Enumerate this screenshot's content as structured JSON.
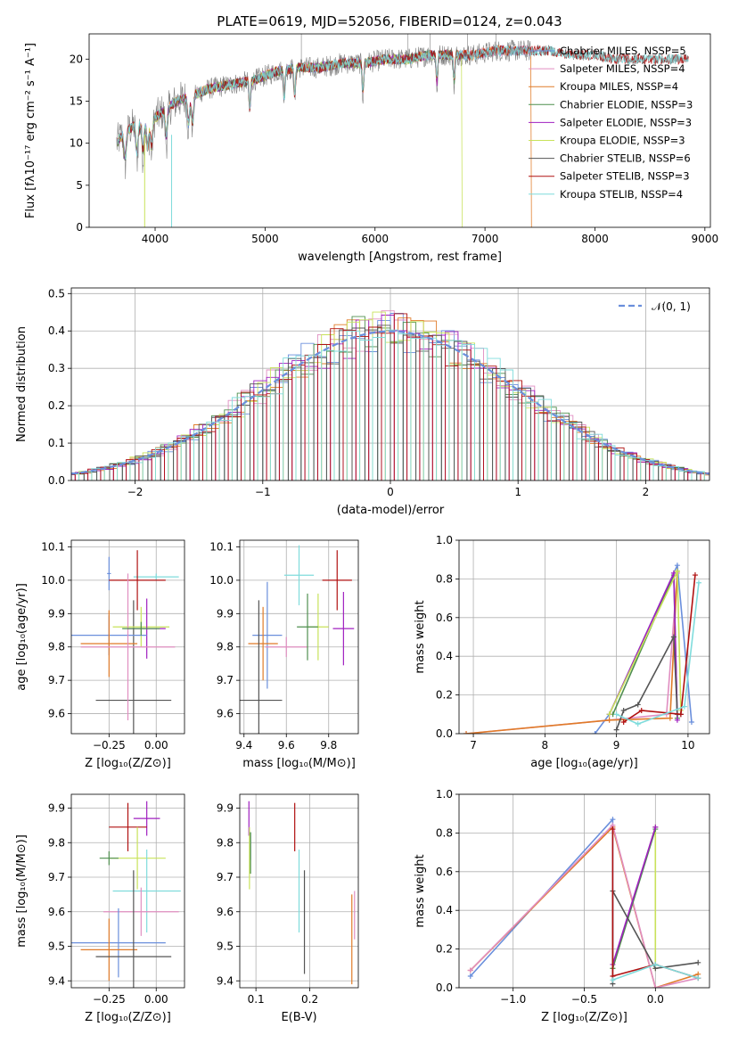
{
  "colors": {
    "chabrier_miles": "#6a8fdc",
    "salpeter_miles": "#e08ec1",
    "kroupa_miles": "#e07b28",
    "chabrier_elodie": "#4f8f4f",
    "salpeter_elodie": "#a020c0",
    "kroupa_elodie": "#c8e25a",
    "chabrier_stelib": "#555555",
    "salpeter_stelib": "#b01010",
    "kroupa_stelib": "#7fdcdc",
    "spectrum": "#808080",
    "normal_curve": "#6a8fdc"
  },
  "chart_data": [
    {
      "id": "spectrum",
      "type": "line",
      "title": "PLATE=0619, MJD=52056, FIBERID=0124, z=0.043",
      "xlabel": "wavelength [Angstrom, rest frame]",
      "ylabel": "Flux [fλ10⁻¹⁷ erg cm⁻² s⁻¹ A⁻¹]",
      "xlim": [
        3400,
        9050
      ],
      "ylim": [
        0,
        23
      ],
      "xticks": [
        "4000",
        "5000",
        "6000",
        "7000",
        "8000",
        "9000"
      ],
      "yticks": [
        "0",
        "5",
        "10",
        "15",
        "20"
      ],
      "grid": false,
      "legend": [
        {
          "label": "Chabrier MILES, NSSP=5",
          "color_key": "chabrier_miles"
        },
        {
          "label": "Salpeter MILES, NSSP=4",
          "color_key": "salpeter_miles"
        },
        {
          "label": "Kroupa MILES, NSSP=4",
          "color_key": "kroupa_miles"
        },
        {
          "label": "Chabrier ELODIE, NSSP=3",
          "color_key": "chabrier_elodie"
        },
        {
          "label": "Salpeter ELODIE, NSSP=3",
          "color_key": "salpeter_elodie"
        },
        {
          "label": "Kroupa ELODIE, NSSP=3",
          "color_key": "kroupa_elodie"
        },
        {
          "label": "Chabrier STELIB, NSSP=6",
          "color_key": "chabrier_stelib"
        },
        {
          "label": "Salpeter STELIB, NSSP=3",
          "color_key": "salpeter_stelib"
        },
        {
          "label": "Kroupa STELIB, NSSP=4",
          "color_key": "kroupa_stelib"
        }
      ],
      "continuum": {
        "x": [
          3650,
          3700,
          3800,
          3900,
          4000,
          4100,
          4200,
          4300,
          4500,
          4700,
          4900,
          5100,
          5300,
          5500,
          5700,
          5900,
          6100,
          6300,
          6500,
          6700,
          6900,
          7100,
          7300,
          7400
        ],
        "y": [
          10,
          11,
          12,
          12.5,
          13,
          14,
          15,
          15.5,
          16.5,
          17,
          17.5,
          18.5,
          19,
          19,
          19.5,
          19.5,
          20,
          20,
          20.5,
          20.5,
          20.5,
          21,
          21,
          21
        ]
      },
      "model_continuum": {
        "x": [
          7400,
          7600,
          7800,
          8000,
          8200,
          8400,
          8600,
          8800
        ],
        "y": [
          21,
          21,
          20.5,
          20.5,
          20,
          20,
          20,
          20
        ]
      }
    },
    {
      "id": "residuals",
      "type": "histogram",
      "xlabel": "(data-model)/error",
      "ylabel": "Normed distribution",
      "xlim": [
        -2.5,
        2.5
      ],
      "ylim": [
        0,
        0.515
      ],
      "xticks": [
        "−2",
        "−1",
        "0",
        "1",
        "2"
      ],
      "yticks": [
        "0.0",
        "0.1",
        "0.2",
        "0.3",
        "0.4",
        "0.5"
      ],
      "grid": true,
      "legend_position": "top-right",
      "curve_label": "𝒩(0, 1)",
      "bin_width": 0.1
    },
    {
      "id": "age-vs-Z",
      "type": "scatter",
      "xlabel": "Z [log₁₀(Z/Z⊙)]",
      "ylabel": "age  [log₁₀(age/yr)]",
      "xlim": [
        -0.45,
        0.15
      ],
      "ylim": [
        9.54,
        10.12
      ],
      "xticks": [
        "−0.25",
        "0.00"
      ],
      "yticks": [
        "9.6",
        "9.7",
        "9.8",
        "9.9",
        "10.0",
        "10.1"
      ],
      "grid": true,
      "points": [
        {
          "k": "chabrier_miles",
          "x": -0.25,
          "y": 10.02,
          "ex": 0.01,
          "ey": 0.05
        },
        {
          "k": "kroupa_stelib",
          "x": 0.0,
          "y": 10.01,
          "ex": 0.12,
          "ey": 0.01
        },
        {
          "k": "salpeter_stelib",
          "x": -0.1,
          "y": 10.0,
          "ex": 0.15,
          "ey": 0.09
        },
        {
          "k": "chabrier_stelib",
          "x": -0.12,
          "y": 9.64,
          "ex": 0.2,
          "ey": 0.3
        },
        {
          "k": "kroupa_elodie",
          "x": -0.08,
          "y": 9.86,
          "ex": 0.15,
          "ey": 0.06
        },
        {
          "k": "salpeter_elodie",
          "x": -0.05,
          "y": 9.855,
          "ex": 0.1,
          "ey": 0.09
        },
        {
          "k": "chabrier_miles",
          "x": -0.25,
          "y": 9.835,
          "ex": 0.2,
          "ey": 0.06
        },
        {
          "k": "kroupa_miles",
          "x": -0.25,
          "y": 9.81,
          "ex": 0.15,
          "ey": 0.1
        },
        {
          "k": "salpeter_miles",
          "x": -0.15,
          "y": 9.8,
          "ex": 0.25,
          "ey": 0.22
        },
        {
          "k": "chabrier_elodie",
          "x": -0.08,
          "y": 9.855,
          "ex": 0.1,
          "ey": 0.02
        }
      ]
    },
    {
      "id": "age-vs-mass",
      "type": "scatter",
      "xlabel": "mass [log₁₀(M/M⊙)]",
      "ylabel": "",
      "xlim": [
        9.38,
        9.94
      ],
      "ylim": [
        9.54,
        10.12
      ],
      "xticks": [
        "9.4",
        "9.6",
        "9.8"
      ],
      "yticks": [
        "9.6",
        "9.7",
        "9.8",
        "9.9",
        "10.0",
        "10.1"
      ],
      "grid": true,
      "points": [
        {
          "k": "kroupa_stelib",
          "x": 9.66,
          "y": 10.015,
          "ex": 0.07,
          "ey": 0.09
        },
        {
          "k": "salpeter_stelib",
          "x": 9.84,
          "y": 10.0,
          "ex": 0.07,
          "ey": 0.09
        },
        {
          "k": "chabrier_miles",
          "x": 9.51,
          "y": 9.835,
          "ex": 0.07,
          "ey": 0.16
        },
        {
          "k": "kroupa_miles",
          "x": 9.49,
          "y": 9.81,
          "ex": 0.07,
          "ey": 0.11
        },
        {
          "k": "chabrier_stelib",
          "x": 9.47,
          "y": 9.64,
          "ex": 0.11,
          "ey": 0.3
        },
        {
          "k": "kroupa_elodie",
          "x": 9.75,
          "y": 9.86,
          "ex": 0.05,
          "ey": 0.1
        },
        {
          "k": "salpeter_elodie",
          "x": 9.87,
          "y": 9.855,
          "ex": 0.05,
          "ey": 0.11
        },
        {
          "k": "salpeter_miles",
          "x": 9.6,
          "y": 9.8,
          "ex": 0.1,
          "ey": 0.03
        },
        {
          "k": "chabrier_elodie",
          "x": 9.7,
          "y": 9.86,
          "ex": 0.05,
          "ey": 0.1
        }
      ]
    },
    {
      "id": "weight-vs-age",
      "type": "line",
      "xlabel": "age  [log₁₀(age/yr)]",
      "ylabel": "mass weight",
      "xlim": [
        6.8,
        10.3
      ],
      "ylim": [
        0,
        1.0
      ],
      "xticks": [
        "7",
        "8",
        "9",
        "10"
      ],
      "yticks": [
        "0.0",
        "0.2",
        "0.4",
        "0.6",
        "0.8",
        "1.0"
      ],
      "grid": true,
      "series": [
        {
          "k": "chabrier_miles",
          "x": [
            8.7,
            8.9,
            9.85,
            10.05
          ],
          "y": [
            0.0,
            0.1,
            0.87,
            0.06
          ]
        },
        {
          "k": "salpeter_miles",
          "x": [
            6.9,
            8.9,
            9.7,
            9.85
          ],
          "y": [
            0.0,
            0.07,
            0.1,
            0.83
          ]
        },
        {
          "k": "kroupa_miles",
          "x": [
            6.9,
            8.9,
            9.75,
            9.85
          ],
          "y": [
            0.0,
            0.07,
            0.08,
            0.84
          ]
        },
        {
          "k": "chabrier_elodie",
          "x": [
            8.95,
            9.8,
            9.85
          ],
          "y": [
            0.1,
            0.82,
            0.08
          ]
        },
        {
          "k": "salpeter_elodie",
          "x": [
            8.9,
            9.8,
            9.85
          ],
          "y": [
            0.1,
            0.83,
            0.07
          ]
        },
        {
          "k": "kroupa_elodie",
          "x": [
            8.9,
            9.85,
            9.9
          ],
          "y": [
            0.1,
            0.84,
            0.12
          ]
        },
        {
          "k": "chabrier_stelib",
          "x": [
            9.0,
            9.1,
            9.3,
            9.8,
            9.85,
            9.9
          ],
          "y": [
            0.02,
            0.12,
            0.15,
            0.5,
            0.1,
            0.1
          ]
        },
        {
          "k": "salpeter_stelib",
          "x": [
            9.1,
            9.35,
            9.9,
            10.1
          ],
          "y": [
            0.06,
            0.12,
            0.1,
            0.82
          ]
        },
        {
          "k": "kroupa_stelib",
          "x": [
            9.0,
            9.3,
            9.95,
            10.15
          ],
          "y": [
            0.1,
            0.05,
            0.14,
            0.78
          ]
        }
      ]
    },
    {
      "id": "mass-vs-Z",
      "type": "scatter",
      "xlabel": "Z [log₁₀(Z/Z⊙)]",
      "ylabel": "mass [log₁₀(M/M⊙)]",
      "xlim": [
        -0.45,
        0.15
      ],
      "ylim": [
        9.38,
        9.94
      ],
      "xticks": [
        "−0.25",
        "0.00"
      ],
      "yticks": [
        "9.4",
        "9.5",
        "9.6",
        "9.7",
        "9.8",
        "9.9"
      ],
      "grid": true,
      "points": [
        {
          "k": "salpeter_elodie",
          "x": -0.05,
          "y": 9.87,
          "ex": 0.07,
          "ey": 0.05
        },
        {
          "k": "salpeter_stelib",
          "x": -0.15,
          "y": 9.845,
          "ex": 0.1,
          "ey": 0.07
        },
        {
          "k": "kroupa_elodie",
          "x": -0.1,
          "y": 9.755,
          "ex": 0.15,
          "ey": 0.09
        },
        {
          "k": "kroupa_stelib",
          "x": -0.05,
          "y": 9.66,
          "ex": 0.18,
          "ey": 0.12
        },
        {
          "k": "salpeter_miles",
          "x": -0.08,
          "y": 9.6,
          "ex": 0.2,
          "ey": 0.07
        },
        {
          "k": "chabrier_miles",
          "x": -0.2,
          "y": 9.51,
          "ex": 0.25,
          "ey": 0.1
        },
        {
          "k": "kroupa_miles",
          "x": -0.25,
          "y": 9.49,
          "ex": 0.15,
          "ey": 0.09
        },
        {
          "k": "chabrier_stelib",
          "x": -0.12,
          "y": 9.47,
          "ex": 0.2,
          "ey": 0.25
        },
        {
          "k": "chabrier_elodie",
          "x": -0.25,
          "y": 9.755,
          "ex": 0.05,
          "ey": 0.02
        }
      ]
    },
    {
      "id": "mass-vs-ebv",
      "type": "scatter",
      "xlabel": "E(B-V)",
      "ylabel": "",
      "xlim": [
        0.07,
        0.29
      ],
      "ylim": [
        9.38,
        9.94
      ],
      "xticks": [
        "0.1",
        "0.2"
      ],
      "yticks": [
        "9.4",
        "9.5",
        "9.6",
        "9.7",
        "9.8",
        "9.9"
      ],
      "grid": true,
      "points": [
        {
          "k": "salpeter_elodie",
          "x": 0.087,
          "y": 9.87,
          "ex": 0,
          "ey": 0.05
        },
        {
          "k": "chabrier_miles",
          "x": 0.09,
          "y": 9.79,
          "ex": 0,
          "ey": 0.04
        },
        {
          "k": "kroupa_elodie",
          "x": 0.088,
          "y": 9.755,
          "ex": 0,
          "ey": 0.09
        },
        {
          "k": "chabrier_elodie",
          "x": 0.09,
          "y": 9.77,
          "ex": 0,
          "ey": 0.06
        },
        {
          "k": "salpeter_stelib",
          "x": 0.172,
          "y": 9.845,
          "ex": 0,
          "ey": 0.07
        },
        {
          "k": "kroupa_stelib",
          "x": 0.18,
          "y": 9.66,
          "ex": 0,
          "ey": 0.12
        },
        {
          "k": "chabrier_stelib",
          "x": 0.19,
          "y": 9.57,
          "ex": 0,
          "ey": 0.15
        },
        {
          "k": "salpeter_miles",
          "x": 0.283,
          "y": 9.59,
          "ex": 0,
          "ey": 0.07
        },
        {
          "k": "kroupa_miles",
          "x": 0.278,
          "y": 9.52,
          "ex": 0,
          "ey": 0.13
        }
      ]
    },
    {
      "id": "weight-vs-Z",
      "type": "line",
      "xlabel": "Z [log₁₀(Z/Z⊙)]",
      "ylabel": "mass weight",
      "xlim": [
        -1.38,
        0.38
      ],
      "ylim": [
        0,
        1.0
      ],
      "xticks": [
        "−1.0",
        "−0.5",
        "0.0"
      ],
      "yticks": [
        "0.0",
        "0.2",
        "0.4",
        "0.6",
        "0.8",
        "1.0"
      ],
      "grid": true,
      "series": [
        {
          "k": "chabrier_miles",
          "x": [
            -1.3,
            -0.3,
            -0.3
          ],
          "y": [
            0.06,
            0.87,
            0.1
          ]
        },
        {
          "k": "kroupa_miles",
          "x": [
            -1.3,
            -0.3,
            0.0,
            0.3
          ],
          "y": [
            0.09,
            0.83,
            0.0,
            0.07
          ]
        },
        {
          "k": "salpeter_miles",
          "x": [
            -1.3,
            -0.3,
            0.0,
            0.3
          ],
          "y": [
            0.09,
            0.84,
            0.0,
            0.05
          ]
        },
        {
          "k": "kroupa_elodie",
          "x": [
            -0.3,
            0.0,
            0.0
          ],
          "y": [
            0.1,
            0.83,
            0.1
          ]
        },
        {
          "k": "chabrier_elodie",
          "x": [
            -0.3,
            0.0
          ],
          "y": [
            0.1,
            0.82
          ]
        },
        {
          "k": "salpeter_elodie",
          "x": [
            -0.3,
            0.0
          ],
          "y": [
            0.12,
            0.83
          ]
        },
        {
          "k": "chabrier_stelib",
          "x": [
            -0.3,
            -0.3,
            0.0,
            0.3
          ],
          "y": [
            0.02,
            0.5,
            0.1,
            0.13
          ]
        },
        {
          "k": "salpeter_stelib",
          "x": [
            -0.3,
            -0.3,
            0.0,
            0.3
          ],
          "y": [
            0.82,
            0.06,
            0.12,
            0.05
          ]
        },
        {
          "k": "kroupa_stelib",
          "x": [
            -0.3,
            0.0,
            0.3
          ],
          "y": [
            0.04,
            0.12,
            0.05
          ]
        }
      ]
    }
  ]
}
